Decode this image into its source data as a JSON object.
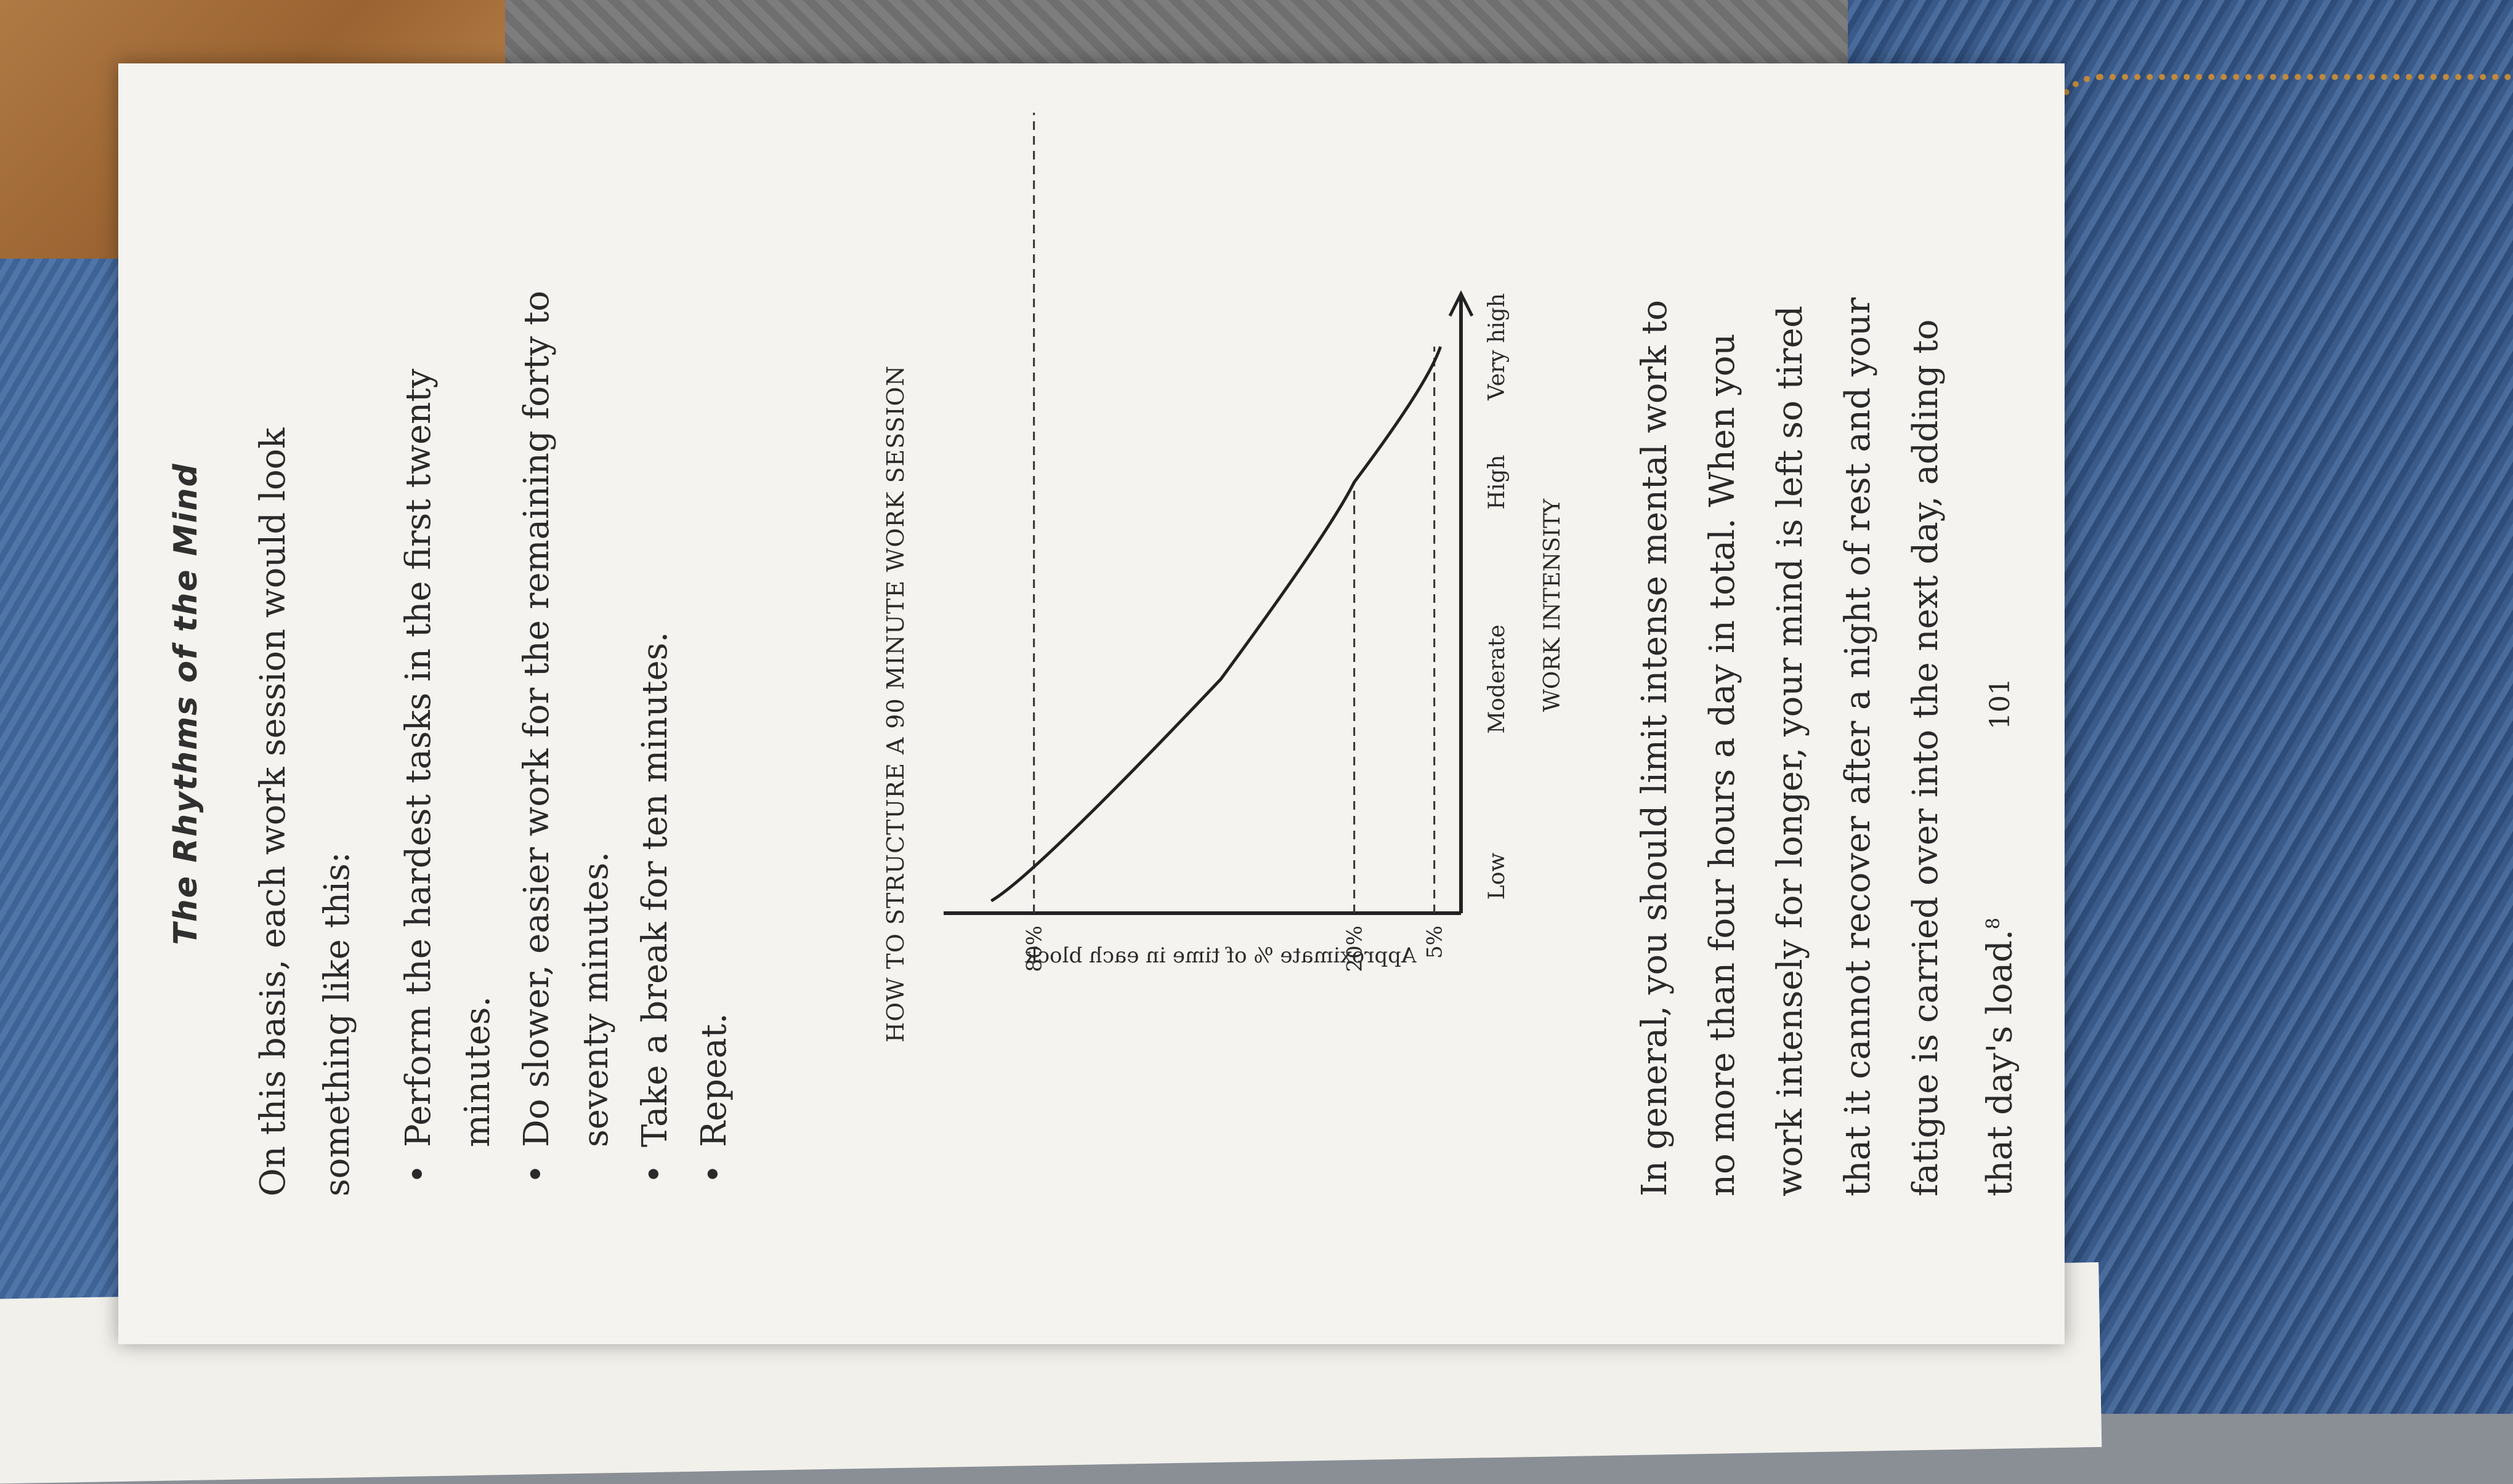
{
  "book": {
    "running_head": "The Rhythms of the Mind",
    "intro": "On this basis, each work session would look something like this:",
    "bullets": [
      "Perform the hardest tasks in the first twenty minutes.",
      "Do slower, easier work for the remaining forty to seventy minutes.",
      "Take a break for ten minutes.",
      "Repeat."
    ],
    "figure_title": "HOW TO STRUCTURE A 90 MINUTE WORK SESSION",
    "outro_text": "In general, you should limit intense mental work to no more than four hours a day in total. When you work intensely for longer, your mind is left so tired that it cannot recover after a night of rest and your fatigue is carried over into the next day, adding to that day's load.",
    "footnote_ref": "8",
    "page_number": "101"
  },
  "chart_data": {
    "type": "line",
    "title": "HOW TO STRUCTURE A 90 MINUTE WORK SESSION",
    "xlabel": "WORK INTENSITY",
    "ylabel": "Approximate % of time in each block",
    "categories": [
      "Low",
      "Moderate",
      "High",
      "Very high"
    ],
    "y_ticks": [
      "80%",
      "20%",
      "5%"
    ],
    "series": [
      {
        "values": [
          80,
          45,
          20,
          5
        ]
      }
    ],
    "grid": false
  },
  "colors": {
    "page": "#f4f3ef",
    "ink": "#2a2a2a",
    "jeans": "#3a5a8a"
  }
}
